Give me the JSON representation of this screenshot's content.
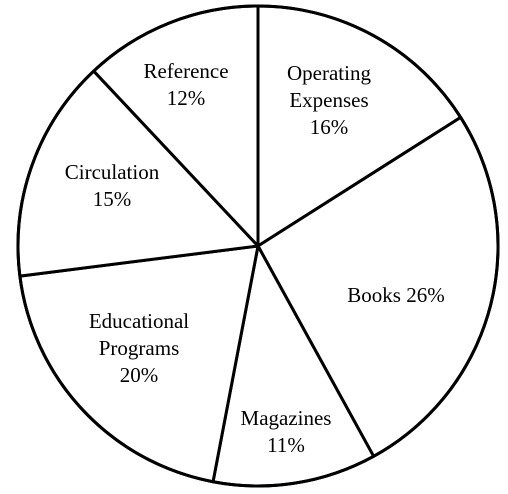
{
  "chart_data": {
    "type": "pie",
    "title": "",
    "start_angle_deg": 90,
    "direction": "clockwise",
    "colors": {
      "fill": "#ffffff",
      "stroke": "#000000"
    },
    "slices": [
      {
        "label": "Operating Expenses",
        "value": 16,
        "value_label": "16%",
        "label_lines": [
          "Operating",
          "Expenses",
          "16%"
        ]
      },
      {
        "label": "Books",
        "value": 26,
        "value_label": "26%",
        "label_lines": [
          "Books 26%"
        ]
      },
      {
        "label": "Magazines",
        "value": 11,
        "value_label": "11%",
        "label_lines": [
          "Magazines",
          "11%"
        ]
      },
      {
        "label": "Educational Programs",
        "value": 20,
        "value_label": "20%",
        "label_lines": [
          "Educational",
          "Programs",
          "20%"
        ]
      },
      {
        "label": "Circulation",
        "value": 15,
        "value_label": "15%",
        "label_lines": [
          "Circulation",
          "15%"
        ]
      },
      {
        "label": "Reference",
        "value": 12,
        "value_label": "12%",
        "label_lines": [
          "Reference",
          "12%"
        ]
      }
    ]
  }
}
